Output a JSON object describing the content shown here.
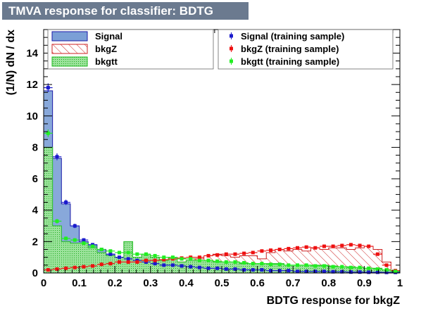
{
  "title": "TMVA response for classifier: BDTG",
  "chart_data": {
    "type": "histogram",
    "xlabel": "BDTG response for bkgZ",
    "ylabel": "(1/N) dN / dx",
    "xlim": [
      0,
      1
    ],
    "ylim": [
      0,
      15.5
    ],
    "x_ticks": [
      "0",
      "0.1",
      "0.2",
      "0.3",
      "0.4",
      "0.5",
      "0.6",
      "0.7",
      "0.8",
      "0.9",
      "1"
    ],
    "y_ticks": [
      "0",
      "2",
      "4",
      "6",
      "8",
      "10",
      "12",
      "14"
    ],
    "bin_width": 0.025,
    "legend_left": [
      "Signal",
      "bkgZ",
      "bkgtt"
    ],
    "legend_right": [
      "Signal (training sample)",
      "bkgZ (training sample)",
      "bkgtt (training sample)"
    ],
    "colors": {
      "signal_fill": "#7b9fd6",
      "signal_line": "#1a1aa8",
      "bkgz_line": "#cc2222",
      "bkgtt_fill": "#7ddc7d",
      "bkgtt_line": "#22bb22",
      "signal_train": "#1a1acc",
      "bkgz_train": "#ee1111",
      "bkgtt_train": "#22ee22",
      "title_bg": "#6b7a8f"
    },
    "series": [
      {
        "name": "Signal",
        "style": "filled",
        "values": [
          11.6,
          7.3,
          4.4,
          3.0,
          2.0,
          1.8,
          1.5,
          1.2,
          1.0,
          0.9,
          0.8,
          0.7,
          0.6,
          0.5,
          0.5,
          0.4,
          0.4,
          0.35,
          0.3,
          0.3,
          0.25,
          0.25,
          0.2,
          0.2,
          0.2,
          0.15,
          0.15,
          0.15,
          0.1,
          0.1,
          0.1,
          0.1,
          0.08,
          0.08,
          0.06,
          0.06,
          0.05,
          0.05,
          0.04,
          0.04
        ]
      },
      {
        "name": "bkgZ",
        "style": "hatched",
        "values": [
          0.2,
          0.3,
          0.3,
          0.4,
          0.5,
          0.7,
          0.6,
          0.5,
          0.7,
          0.7,
          0.6,
          0.5,
          0.9,
          0.7,
          0.6,
          0.7,
          0.8,
          0.9,
          1.1,
          1.2,
          1.1,
          1.0,
          1.1,
          1.1,
          0.9,
          1.3,
          1.5,
          1.4,
          1.5,
          1.4,
          1.6,
          1.5,
          1.6,
          1.6,
          1.5,
          1.6,
          1.7,
          1.5,
          0.7,
          0.1
        ]
      },
      {
        "name": "bkgtt",
        "style": "dotted",
        "values": [
          8.0,
          3.0,
          2.0,
          1.9,
          1.9,
          1.6,
          1.3,
          1.1,
          1.0,
          2.0,
          1.0,
          1.2,
          1.0,
          0.8,
          1.0,
          0.7,
          0.8,
          0.8,
          0.8,
          0.7,
          0.7,
          0.7,
          0.6,
          0.6,
          0.6,
          0.6,
          0.6,
          0.5,
          0.5,
          0.5,
          0.5,
          0.5,
          0.45,
          0.4,
          0.4,
          0.35,
          0.3,
          0.3,
          0.2,
          0.1
        ]
      },
      {
        "name": "Signal (training sample)",
        "style": "markers",
        "values": [
          11.8,
          7.4,
          4.5,
          3.0,
          2.1,
          1.8,
          1.5,
          1.2,
          1.0,
          0.9,
          0.8,
          0.7,
          0.6,
          0.5,
          0.5,
          0.45,
          0.4,
          0.35,
          0.3,
          0.3,
          0.25,
          0.25,
          0.2,
          0.2,
          0.2,
          0.15,
          0.15,
          0.15,
          0.1,
          0.1,
          0.1,
          0.1,
          0.08,
          0.08,
          0.06,
          0.06,
          0.05,
          0.05,
          0.04,
          0.04
        ]
      },
      {
        "name": "bkgZ (training sample)",
        "style": "markers",
        "values": [
          0.2,
          0.25,
          0.3,
          0.35,
          0.4,
          0.45,
          0.55,
          0.6,
          0.7,
          0.7,
          0.7,
          0.8,
          0.8,
          0.85,
          0.9,
          0.95,
          1.0,
          1.0,
          1.1,
          1.15,
          1.2,
          1.2,
          1.25,
          1.3,
          1.4,
          1.45,
          1.5,
          1.55,
          1.6,
          1.65,
          1.6,
          1.7,
          1.7,
          1.75,
          1.8,
          1.75,
          1.7,
          1.2,
          0.5,
          0.15
        ]
      },
      {
        "name": "bkgtt (training sample)",
        "style": "markers",
        "values": [
          8.9,
          3.3,
          2.2,
          2.1,
          1.9,
          1.7,
          1.5,
          1.4,
          1.3,
          1.3,
          1.2,
          1.2,
          1.1,
          1.0,
          1.0,
          0.9,
          0.9,
          0.8,
          0.8,
          0.75,
          0.7,
          0.7,
          0.65,
          0.6,
          0.6,
          0.55,
          0.55,
          0.5,
          0.5,
          0.5,
          0.45,
          0.45,
          0.4,
          0.4,
          0.35,
          0.35,
          0.3,
          0.25,
          0.2,
          0.1
        ]
      }
    ]
  }
}
